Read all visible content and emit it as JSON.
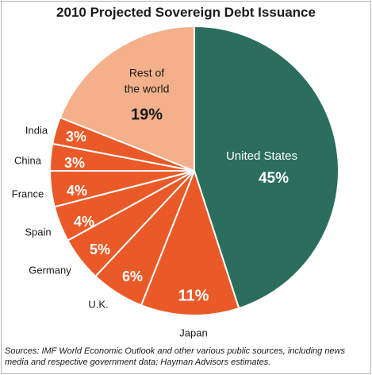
{
  "chart_data": {
    "type": "pie",
    "title": "2010 Projected Sovereign Debt Issuance",
    "unit": "%",
    "slices": [
      {
        "label": "United States",
        "value": 45,
        "value_text": "45%",
        "color": "#2b6e5e"
      },
      {
        "label": "Japan",
        "value": 11,
        "value_text": "11%",
        "color": "#ea5a28"
      },
      {
        "label": "U.K.",
        "value": 6,
        "value_text": "6%",
        "color": "#ea5a28"
      },
      {
        "label": "Germany",
        "value": 5,
        "value_text": "5%",
        "color": "#ea5a28"
      },
      {
        "label": "Spain",
        "value": 4,
        "value_text": "4%",
        "color": "#ea5a28"
      },
      {
        "label": "France",
        "value": 4,
        "value_text": "4%",
        "color": "#ea5a28"
      },
      {
        "label": "China",
        "value": 3,
        "value_text": "3%",
        "color": "#ea5a28"
      },
      {
        "label": "India",
        "value": 3,
        "value_text": "3%",
        "color": "#ea5a28"
      },
      {
        "label": "Rest of the world",
        "value": 19,
        "value_text": "19%",
        "color": "#f3b08a"
      }
    ],
    "start": "12 o'clock, clockwise",
    "source": "Sources:  IMF World Economic Outlook and other various public sources, including news media and respective government data; Hayman Advisors estimates."
  }
}
